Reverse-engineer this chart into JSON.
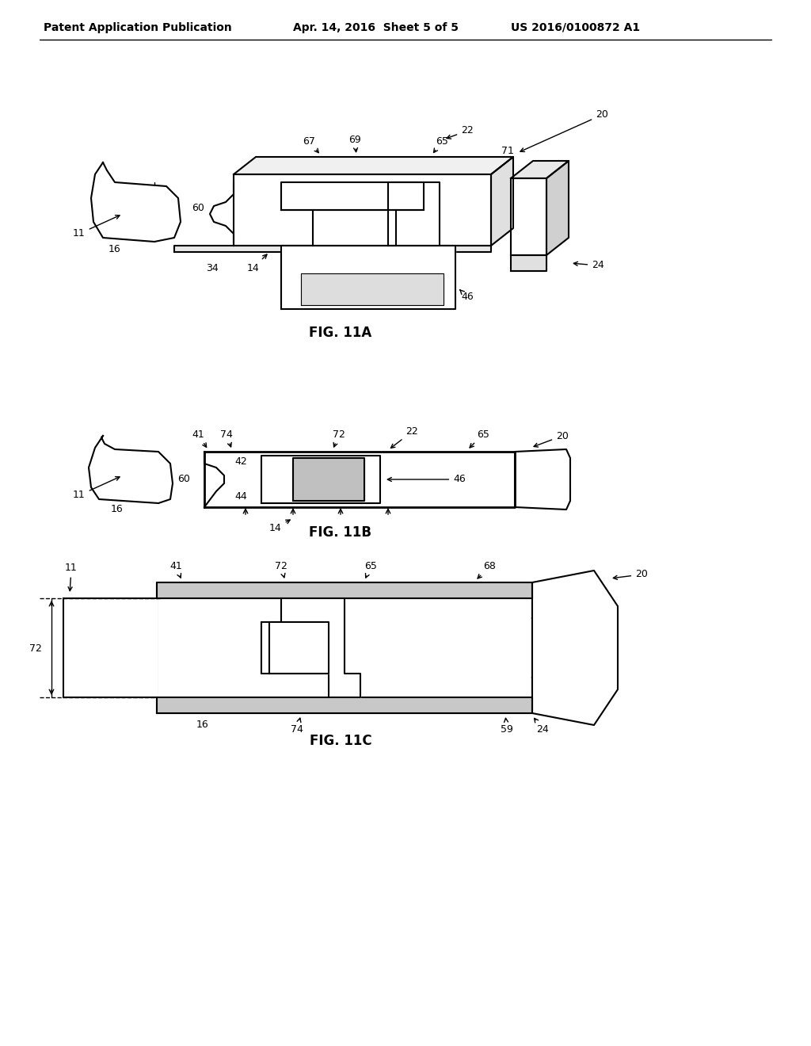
{
  "bg_color": "#ffffff",
  "lc": "#000000",
  "header_left": "Patent Application Publication",
  "header_mid": "Apr. 14, 2016  Sheet 5 of 5",
  "header_right": "US 2016/0100872 A1",
  "fig11a_label": "FIG. 11A",
  "fig11b_label": "FIG. 11B",
  "fig11c_label": "FIG. 11C"
}
